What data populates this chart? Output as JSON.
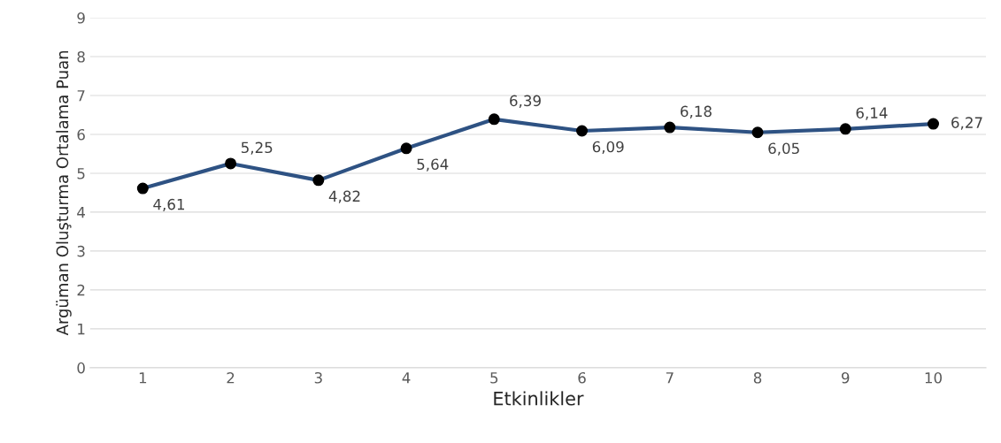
{
  "chart_data": {
    "type": "line",
    "xlabel": "Etkinlikler",
    "ylabel": "Argüman Oluşturma Ortalama Puan",
    "categories": [
      "1",
      "2",
      "3",
      "4",
      "5",
      "6",
      "7",
      "8",
      "9",
      "10"
    ],
    "series": [
      {
        "color": "#2e5283",
        "values": [
          4.61,
          5.25,
          4.82,
          5.64,
          6.39,
          6.09,
          6.18,
          6.05,
          6.14,
          6.27
        ],
        "value_labels": [
          "4,61",
          "5,25",
          "4,82",
          "5,64",
          "6,39",
          "6,09",
          "6,18",
          "6,05",
          "6,14",
          "6,27"
        ]
      }
    ],
    "ylim": [
      0,
      9
    ],
    "yticks": [
      0,
      1,
      2,
      3,
      4,
      5,
      6,
      7,
      8,
      9
    ],
    "grid": "y",
    "marker": "circle",
    "line_style": "solid",
    "legend": false
  }
}
